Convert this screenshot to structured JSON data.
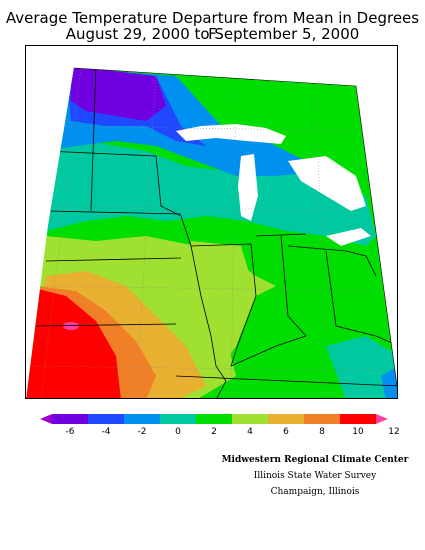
{
  "header": {
    "title_line1": "Average Temperature Departure from Mean in Degrees F",
    "title_line2": "August 29, 2000 to September 5, 2000"
  },
  "legend": {
    "ticks": [
      "-6",
      "-4",
      "-2",
      "0",
      "2",
      "4",
      "6",
      "8",
      "10",
      "12"
    ],
    "colors": [
      "#8000ff",
      "#7000e0",
      "#2048ff",
      "#0090f0",
      "#00c8a0",
      "#00dd00",
      "#a0e030",
      "#e8b030",
      "#f08028",
      "#ff0000",
      "#ff40a0"
    ]
  },
  "credits": {
    "line1": "Midwestern Regional Climate Center",
    "line2": "Illinois State Water Survey",
    "line3": "Champaign, Illinois"
  }
}
